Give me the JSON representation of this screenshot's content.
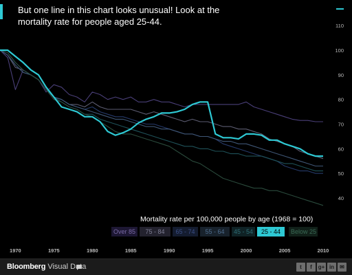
{
  "headline": "But one line in this chart looks unusual! Look at the mortality rate for people aged 25-44.",
  "subtitle": "Mortality rate per 100,000 people by age (1968 = 100)",
  "footer": {
    "brand_bold": "Bloomberg",
    "brand_light": " Visual Data"
  },
  "icons": {
    "menu": "menu-dash-icon",
    "comment": "comment-icon",
    "share": [
      "twitter-icon",
      "facebook-icon",
      "google-plus-icon",
      "linkedin-icon",
      "email-icon"
    ]
  },
  "share_glyphs": [
    "t",
    "f",
    "g+",
    "in",
    "✉"
  ],
  "colors": {
    "accent": "#2ec9d4",
    "background": "#000000",
    "footer_bg": "#1b1b1b"
  },
  "chart_data": {
    "type": "line",
    "title": "Mortality rate per 100,000 people by age (1968 = 100)",
    "x_ticks": [
      1970,
      1975,
      1980,
      1985,
      1990,
      1995,
      2000,
      2005,
      2010
    ],
    "y_ticks": [
      40,
      50,
      60,
      70,
      80,
      90,
      100,
      110
    ],
    "xlim": [
      1968,
      2010
    ],
    "ylim": [
      35,
      112
    ],
    "grid": false,
    "legend": [
      {
        "label": "Over 85",
        "color": "#7a6aa6",
        "bg": "#1d1733"
      },
      {
        "label": "75 - 84",
        "color": "#7f7f95",
        "bg": "#23222e"
      },
      {
        "label": "65 - 74",
        "color": "#3c4f86",
        "bg": "#141c2f"
      },
      {
        "label": "55 - 64",
        "color": "#4f6e8f",
        "bg": "#18222c"
      },
      {
        "label": "45 - 54",
        "color": "#2f6e75",
        "bg": "#0f2225"
      },
      {
        "label": "25 - 44",
        "color": "#000000",
        "bg": "#2ec9d4",
        "active": true
      },
      {
        "label": "Below 25",
        "color": "#3a6a55",
        "bg": "#112019"
      }
    ],
    "x": [
      1968,
      1969,
      1970,
      1971,
      1972,
      1973,
      1974,
      1975,
      1976,
      1977,
      1978,
      1979,
      1980,
      1981,
      1982,
      1983,
      1984,
      1985,
      1986,
      1987,
      1988,
      1989,
      1990,
      1991,
      1992,
      1993,
      1994,
      1995,
      1996,
      1997,
      1998,
      1999,
      2000,
      2001,
      2002,
      2003,
      2004,
      2005,
      2006,
      2007,
      2008,
      2009,
      2010
    ],
    "series": [
      {
        "name": "25 - 44",
        "color": "#2ec9d4",
        "width": 2.2,
        "values": [
          100,
          100,
          97.5,
          95,
          92,
          90,
          85,
          81,
          77,
          76,
          75,
          73,
          73,
          71,
          67,
          65.5,
          66.5,
          68,
          70.5,
          72,
          73,
          74.5,
          74.5,
          75,
          76,
          78,
          79,
          79,
          66,
          64.5,
          64.5,
          64,
          66,
          66,
          65.5,
          63.5,
          63.5,
          62,
          61,
          60,
          58,
          57,
          57
        ]
      },
      {
        "name": "Over 85",
        "color": "#4a3f78",
        "width": 1.1,
        "values": [
          100,
          97,
          84,
          92,
          90,
          88,
          83,
          86,
          85,
          82,
          81,
          79,
          83,
          82,
          80,
          81,
          80,
          81,
          79,
          79,
          80,
          79,
          79,
          78,
          77,
          78,
          78,
          78,
          78,
          78,
          78,
          78,
          79,
          77,
          76,
          75,
          74,
          73,
          72,
          71.5,
          71.5,
          71,
          71
        ]
      },
      {
        "name": "75 - 84",
        "color": "#5d5d72",
        "width": 1.1,
        "values": [
          100,
          98,
          93,
          92,
          90,
          88,
          84,
          81,
          80,
          78,
          78,
          77,
          79,
          77,
          76,
          76,
          76,
          76,
          75,
          74,
          75,
          74,
          73,
          72,
          71,
          72,
          71,
          71,
          70,
          69,
          69,
          68,
          68,
          67,
          66,
          64,
          63,
          62,
          61,
          59,
          58,
          57,
          56
        ]
      },
      {
        "name": "65 - 74",
        "color": "#263a6a",
        "width": 1.1,
        "values": [
          100,
          98,
          94,
          91,
          90,
          88,
          84,
          81,
          80,
          78,
          77,
          76,
          77,
          75,
          74,
          73,
          73,
          72,
          71,
          70,
          70,
          69,
          68,
          67,
          66,
          66,
          65,
          65,
          64,
          62,
          61,
          60,
          59,
          58,
          57,
          56,
          55,
          53,
          52,
          51,
          51,
          50,
          50
        ]
      },
      {
        "name": "55 - 64",
        "color": "#3f5675",
        "width": 1.1,
        "values": [
          100,
          98,
          94,
          91,
          90,
          88,
          84,
          81,
          80,
          78,
          77,
          76,
          75,
          74,
          73,
          72,
          72,
          71,
          70,
          69,
          69,
          68,
          68,
          67,
          66,
          66,
          65,
          65,
          64,
          63,
          63,
          62,
          62,
          61,
          60,
          59,
          58,
          57,
          56,
          55,
          54,
          53,
          53
        ]
      },
      {
        "name": "45 - 54",
        "color": "#1f5259",
        "width": 1.1,
        "values": [
          100,
          99,
          95,
          92,
          90,
          88,
          84,
          81,
          79,
          77,
          76,
          74,
          74,
          72,
          71,
          70,
          69,
          68,
          67,
          66,
          65,
          64,
          63,
          62,
          61,
          61,
          60,
          60,
          59,
          59,
          58,
          58,
          57,
          57,
          57,
          56,
          55,
          54,
          54,
          53,
          52,
          51,
          51
        ]
      },
      {
        "name": "Below 25",
        "color": "#2a4a3c",
        "width": 1.1,
        "values": [
          100,
          99,
          95,
          92,
          90,
          88,
          84,
          80,
          79,
          77,
          76,
          74,
          73,
          71,
          69,
          67,
          66,
          66,
          65,
          64,
          63,
          62,
          61,
          59,
          57,
          55,
          54,
          52,
          50,
          48,
          47,
          46,
          45,
          44,
          44,
          43,
          43,
          42,
          41,
          40,
          39,
          38,
          37
        ]
      }
    ]
  }
}
